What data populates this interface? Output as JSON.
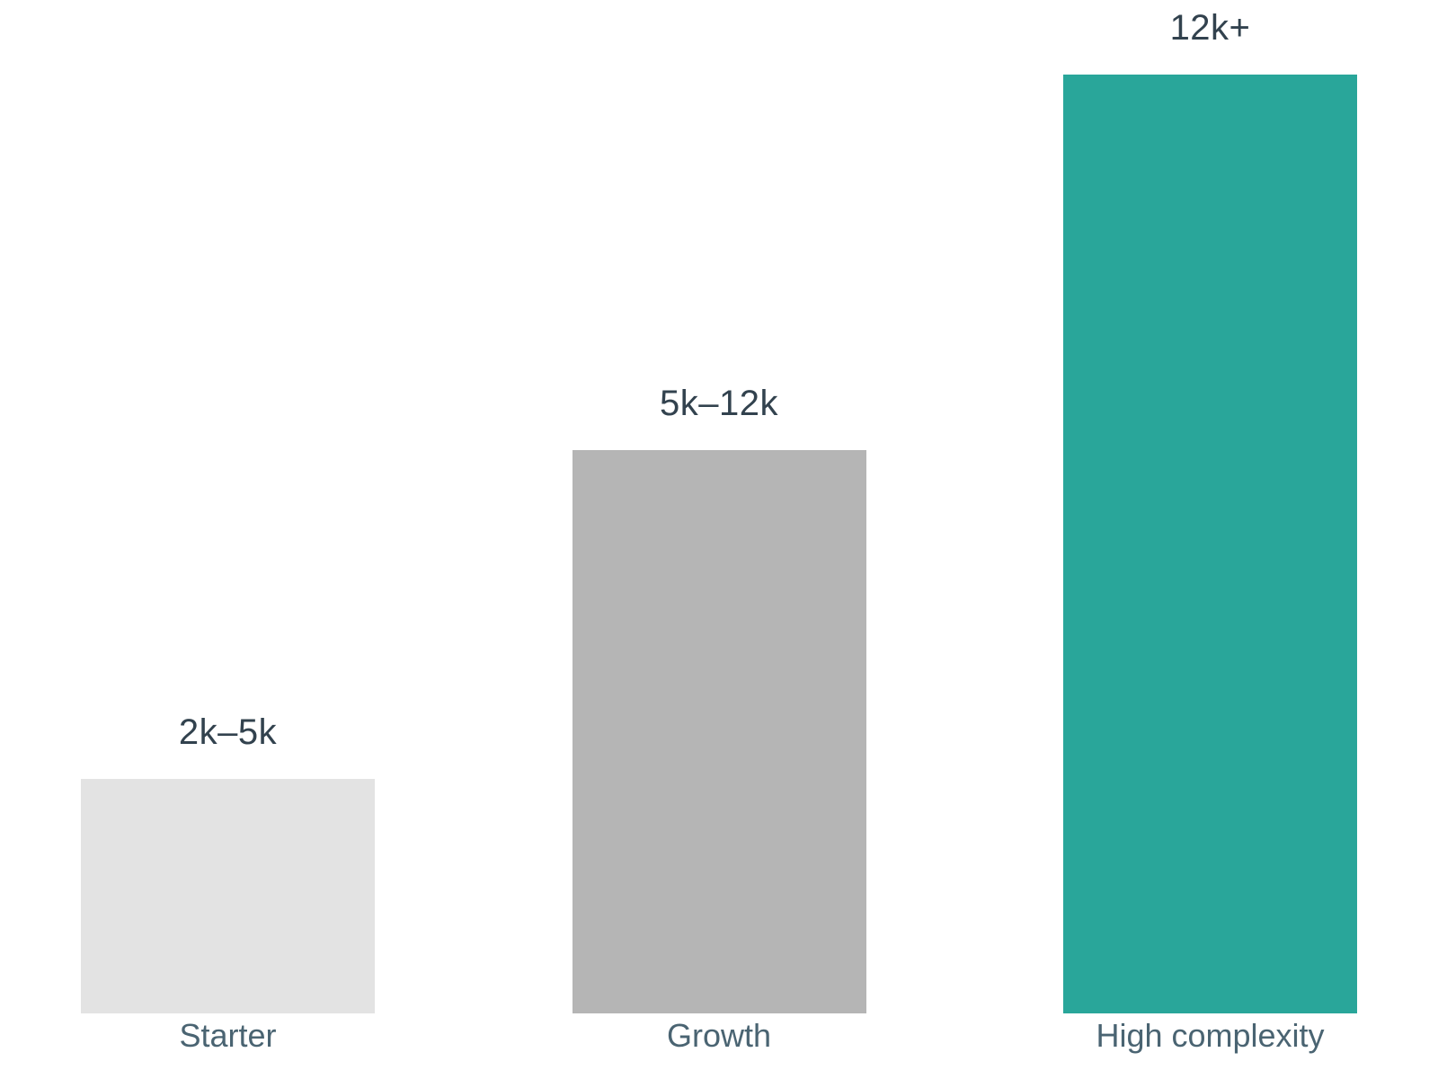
{
  "chart_data": {
    "type": "bar",
    "title": "",
    "xlabel": "",
    "ylabel": "",
    "legend": false,
    "grid": false,
    "background_color": "#ffffff",
    "value_label_color": "#32424e",
    "category_label_color": "#4a6472",
    "categories": [
      "Starter",
      "Growth",
      "High complexity"
    ],
    "value_labels": [
      "2k–5k",
      "5k–12k",
      "12k+"
    ],
    "relative_heights": [
      0.25,
      0.6,
      1.0
    ],
    "bar_colors": [
      "#e3e3e3",
      "#b5b5b5",
      "#29a69a"
    ]
  }
}
